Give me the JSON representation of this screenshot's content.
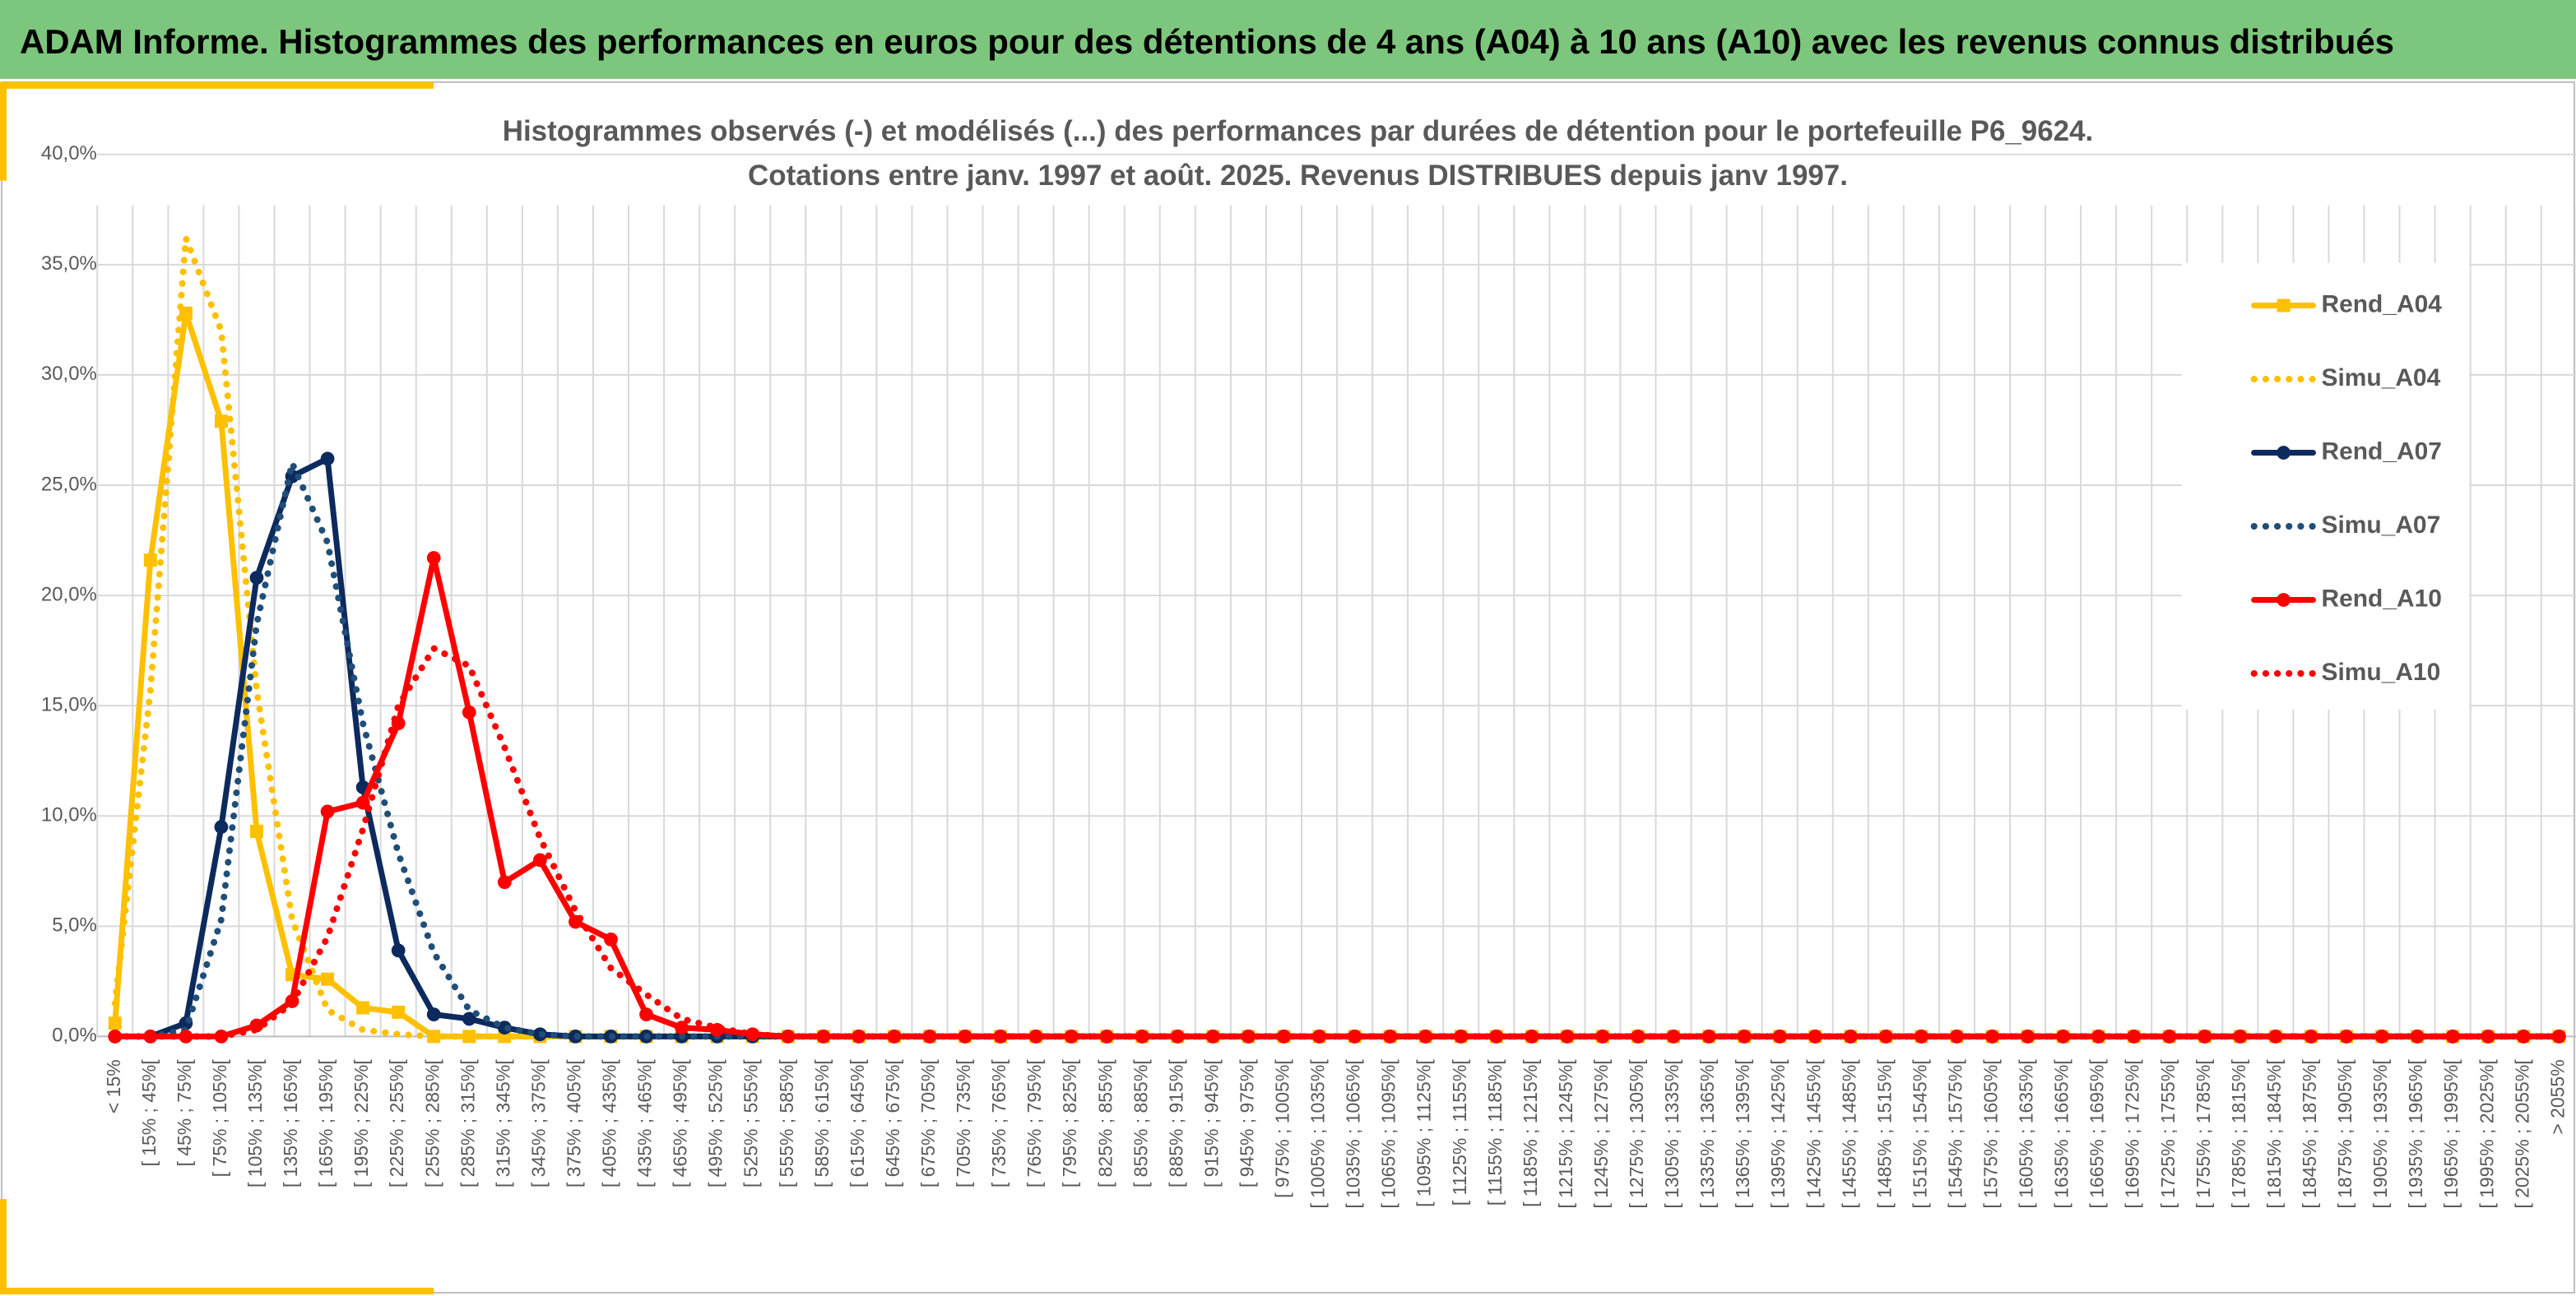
{
  "header": {
    "title": "ADAM Informe. Histogrammes des performances en euros pour des détentions de 4 ans (A04) à 10 ans (A10) avec les revenus connus distribués"
  },
  "chart_data": {
    "type": "line",
    "title": "Histogrammes observés (-) et modélisés (...) des performances par durées de détention pour le portefeuille P6_9624.",
    "subtitle": "Cotations entre janv. 1997 et août. 2025. Revenus DISTRIBUES depuis janv 1997.",
    "categories": [
      "< 15%",
      "[ 15% ; 45%[",
      "[ 45% ; 75%[",
      "[ 75% ; 105%[",
      "[ 105% ; 135%[",
      "[ 135% ; 165%[",
      "[ 165% ; 195%[",
      "[ 195% ; 225%[",
      "[ 225% ; 255%[",
      "[ 255% ; 285%[",
      "[ 285% ; 315%[",
      "[ 315% ; 345%[",
      "[ 345% ; 375%[",
      "[ 375% ; 405%[",
      "[ 405% ; 435%[",
      "[ 435% ; 465%[",
      "[ 465% ; 495%[",
      "[ 495% ; 525%[",
      "[ 525% ; 555%[",
      "[ 555% ; 585%[",
      "[ 585% ; 615%[",
      "[ 615% ; 645%[",
      "[ 645% ; 675%[",
      "[ 675% ; 705%[",
      "[ 705% ; 735%[",
      "[ 735% ; 765%[",
      "[ 765% ; 795%[",
      "[ 795% ; 825%[",
      "[ 825% ; 855%[",
      "[ 855% ; 885%[",
      "[ 885% ; 915%[",
      "[ 915% ; 945%[",
      "[ 945% ; 975%[",
      "[ 975% ; 1005%[",
      "[ 1005% ; 1035%[",
      "[ 1035% ; 1065%[",
      "[ 1065% ; 1095%[",
      "[ 1095% ; 1125%[",
      "[ 1125% ; 1155%[",
      "[ 1155% ; 1185%[",
      "[ 1185% ; 1215%[",
      "[ 1215% ; 1245%[",
      "[ 1245% ; 1275%[",
      "[ 1275% ; 1305%[",
      "[ 1305% ; 1335%[",
      "[ 1335% ; 1365%[",
      "[ 1365% ; 1395%[",
      "[ 1395% ; 1425%[",
      "[ 1425% ; 1455%[",
      "[ 1455% ; 1485%[",
      "[ 1485% ; 1515%[",
      "[ 1515% ; 1545%[",
      "[ 1545% ; 1575%[",
      "[ 1575% ; 1605%[",
      "[ 1605% ; 1635%[",
      "[ 1635% ; 1665%[",
      "[ 1665% ; 1695%[",
      "[ 1695% ; 1725%[",
      "[ 1725% ; 1755%[",
      "[ 1755% ; 1785%[",
      "[ 1785% ; 1815%[",
      "[ 1815% ; 1845%[",
      "[ 1845% ; 1875%[",
      "[ 1875% ; 1905%[",
      "[ 1905% ; 1935%[",
      "[ 1935% ; 1965%[",
      "[ 1965% ; 1995%[",
      "[ 1995% ; 2025%[",
      "[ 2025% ; 2055%[",
      "> 2055%"
    ],
    "series": [
      {
        "name": "Rend_A04",
        "color": "#ffc000",
        "marker": "square",
        "dash": "solid",
        "values": [
          0.6,
          21.6,
          32.8,
          27.9,
          9.3,
          2.8,
          2.6,
          1.3,
          1.1,
          0,
          0,
          0,
          0,
          0,
          0,
          0,
          0,
          0,
          0,
          0,
          0,
          0,
          0,
          0,
          0,
          0,
          0,
          0,
          0,
          0,
          0,
          0,
          0,
          0,
          0,
          0,
          0,
          0,
          0,
          0,
          0,
          0,
          0,
          0,
          0,
          0,
          0,
          0,
          0,
          0,
          0,
          0,
          0,
          0,
          0,
          0,
          0,
          0,
          0,
          0,
          0,
          0,
          0,
          0,
          0,
          0,
          0,
          0,
          0,
          0
        ]
      },
      {
        "name": "Simu_A04",
        "color": "#ffc000",
        "marker": "none",
        "dash": "dotted",
        "values": [
          1.5,
          15.7,
          36.2,
          32,
          15.7,
          5.3,
          1.2,
          0.3,
          0.1,
          0,
          0,
          0,
          0,
          0,
          0,
          0,
          0,
          0,
          0,
          0,
          0,
          0,
          0,
          0,
          0,
          0,
          0,
          0,
          0,
          0,
          0,
          0,
          0,
          0,
          0,
          0,
          0,
          0,
          0,
          0,
          0,
          0,
          0,
          0,
          0,
          0,
          0,
          0,
          0,
          0,
          0,
          0,
          0,
          0,
          0,
          0,
          0,
          0,
          0,
          0,
          0,
          0,
          0,
          0,
          0,
          0,
          0,
          0,
          0,
          0
        ]
      },
      {
        "name": "Rend_A07",
        "color": "#0c2a5e",
        "marker": "circle",
        "dash": "solid",
        "values": [
          0,
          0,
          0.6,
          9.5,
          20.8,
          25.4,
          26.2,
          11.3,
          3.9,
          1,
          0.8,
          0.4,
          0.1,
          0,
          0,
          0,
          0,
          0,
          0,
          0,
          0,
          0,
          0,
          0,
          0,
          0,
          0,
          0,
          0,
          0,
          0,
          0,
          0,
          0,
          0,
          0,
          0,
          0,
          0,
          0,
          0,
          0,
          0,
          0,
          0,
          0,
          0,
          0,
          0,
          0,
          0,
          0,
          0,
          0,
          0,
          0,
          0,
          0,
          0,
          0,
          0,
          0,
          0,
          0,
          0,
          0,
          0,
          0,
          0,
          0
        ]
      },
      {
        "name": "Simu_A07",
        "color": "#1f4e79",
        "marker": "none",
        "dash": "dotted",
        "values": [
          0,
          0,
          0.3,
          5.3,
          18.7,
          26,
          22.4,
          14.2,
          8.3,
          3.8,
          1.2,
          0.4,
          0.1,
          0,
          0,
          0,
          0,
          0,
          0,
          0,
          0,
          0,
          0,
          0,
          0,
          0,
          0,
          0,
          0,
          0,
          0,
          0,
          0,
          0,
          0,
          0,
          0,
          0,
          0,
          0,
          0,
          0,
          0,
          0,
          0,
          0,
          0,
          0,
          0,
          0,
          0,
          0,
          0,
          0,
          0,
          0,
          0,
          0,
          0,
          0,
          0,
          0,
          0,
          0,
          0,
          0,
          0,
          0,
          0,
          0
        ]
      },
      {
        "name": "Rend_A10",
        "color": "#ff0000",
        "marker": "circle",
        "dash": "solid",
        "values": [
          0,
          0,
          0,
          0,
          0.5,
          1.6,
          10.2,
          10.6,
          14.2,
          21.7,
          14.7,
          7,
          8,
          5.2,
          4.4,
          1,
          0.4,
          0.3,
          0.1,
          0,
          0,
          0,
          0,
          0,
          0,
          0,
          0,
          0,
          0,
          0,
          0,
          0,
          0,
          0,
          0,
          0,
          0,
          0,
          0,
          0,
          0,
          0,
          0,
          0,
          0,
          0,
          0,
          0,
          0,
          0,
          0,
          0,
          0,
          0,
          0,
          0,
          0,
          0,
          0,
          0,
          0,
          0,
          0,
          0,
          0,
          0,
          0,
          0,
          0,
          0
        ]
      },
      {
        "name": "Simu_A10",
        "color": "#ff0000",
        "marker": "none",
        "dash": "dotted",
        "values": [
          0,
          0,
          0,
          0,
          0.3,
          1.5,
          4.5,
          9.4,
          15,
          17.6,
          16.8,
          13.1,
          9,
          5.7,
          3.1,
          1.9,
          0.8,
          0.4,
          0.1,
          0,
          0,
          0,
          0,
          0,
          0,
          0,
          0,
          0,
          0,
          0,
          0,
          0,
          0,
          0,
          0,
          0,
          0,
          0,
          0,
          0,
          0,
          0,
          0,
          0,
          0,
          0,
          0,
          0,
          0,
          0,
          0,
          0,
          0,
          0,
          0,
          0,
          0,
          0,
          0,
          0,
          0,
          0,
          0,
          0,
          0,
          0,
          0,
          0,
          0,
          0
        ]
      }
    ],
    "ylim": [
      0,
      40
    ],
    "yticks": [
      {
        "value": 0,
        "label": "0,0%"
      },
      {
        "value": 5,
        "label": "5,0%"
      },
      {
        "value": 10,
        "label": "10,0%"
      },
      {
        "value": 15,
        "label": "15,0%"
      },
      {
        "value": 20,
        "label": "20,0%"
      },
      {
        "value": 25,
        "label": "25,0%"
      },
      {
        "value": 30,
        "label": "30,0%"
      },
      {
        "value": 35,
        "label": "35,0%"
      },
      {
        "value": 40,
        "label": "40,0%"
      }
    ],
    "grid": true,
    "legend": "right"
  }
}
